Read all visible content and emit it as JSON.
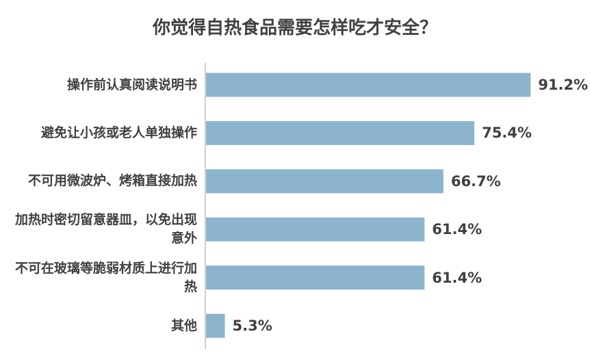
{
  "chart_data": {
    "type": "bar",
    "orientation": "horizontal",
    "title": "你觉得自热食品需要怎样吃才安全？",
    "categories": [
      "操作前认真阅读说明书",
      "避免让小孩或老人单独操作",
      "不可用微波炉、烤箱直接加热",
      "加热时密切留意器皿，以免出现意外",
      "不可在玻璃等脆弱材质上进行加热",
      "其他"
    ],
    "values": [
      91.2,
      75.4,
      66.7,
      61.4,
      61.4,
      5.3
    ],
    "value_labels": [
      "91.2%",
      "75.4%",
      "66.7%",
      "61.4%",
      "61.4%",
      "5.3%"
    ],
    "unit": "%",
    "xlim": [
      0,
      100
    ],
    "grid": false,
    "legend": "none",
    "bar_color": "#8DB4CD",
    "axis_color": "#BFBFBF",
    "text_color": "#404040"
  }
}
